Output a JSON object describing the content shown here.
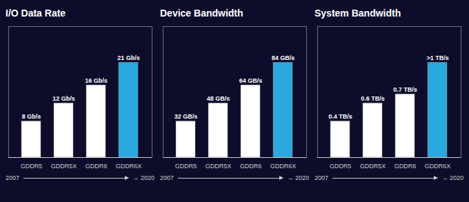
{
  "chart_data": [
    {
      "type": "bar",
      "title": "I/O Data Rate",
      "categories": [
        "GDDR5",
        "GDDR5X",
        "GDDR6",
        "GDDR6X"
      ],
      "values": [
        8,
        12,
        16,
        21
      ],
      "value_labels": [
        "8 Gb/s",
        "12 Gb/s",
        "16 Gb/s",
        "21 Gb/s"
      ],
      "colors": [
        "#ffffff",
        "#ffffff",
        "#ffffff",
        "#2aa8e0"
      ],
      "ylim": [
        0,
        28.98
      ],
      "tick_labels": "x",
      "data_labels": true,
      "grid": false,
      "annotations": [
        "2007",
        "→ 2020"
      ]
    },
    {
      "type": "bar",
      "title": "Device Bandwidth",
      "categories": [
        "GDDR5",
        "GDDR5X",
        "GDDR6",
        "GDDR6X"
      ],
      "values": [
        32,
        48,
        64,
        84
      ],
      "value_labels": [
        "32 GB/s",
        "48 GB/s",
        "64 GB/s",
        "84 GB/s"
      ],
      "colors": [
        "#ffffff",
        "#ffffff",
        "#ffffff",
        "#2aa8e0"
      ],
      "ylim": [
        0,
        115.92
      ],
      "tick_labels": "x",
      "data_labels": true,
      "grid": false,
      "annotations": [
        "2007",
        "→ 2020"
      ]
    },
    {
      "type": "bar",
      "title": "System Bandwidth",
      "categories": [
        "GDDR5",
        "GDDR5X",
        "GDDR6",
        "GDDR6X"
      ],
      "values": [
        0.4,
        0.6,
        0.7,
        1.05
      ],
      "value_labels": [
        "0.4 TB/s",
        "0.6 TB/s",
        "0.7 TB/s",
        ">1 TB/s"
      ],
      "colors": [
        "#ffffff",
        "#ffffff",
        "#ffffff",
        "#2aa8e0"
      ],
      "ylim": [
        0,
        1.449
      ],
      "tick_labels": "x",
      "data_labels": true,
      "grid": false,
      "annotations": [
        "2007",
        "→ 2020"
      ]
    }
  ]
}
